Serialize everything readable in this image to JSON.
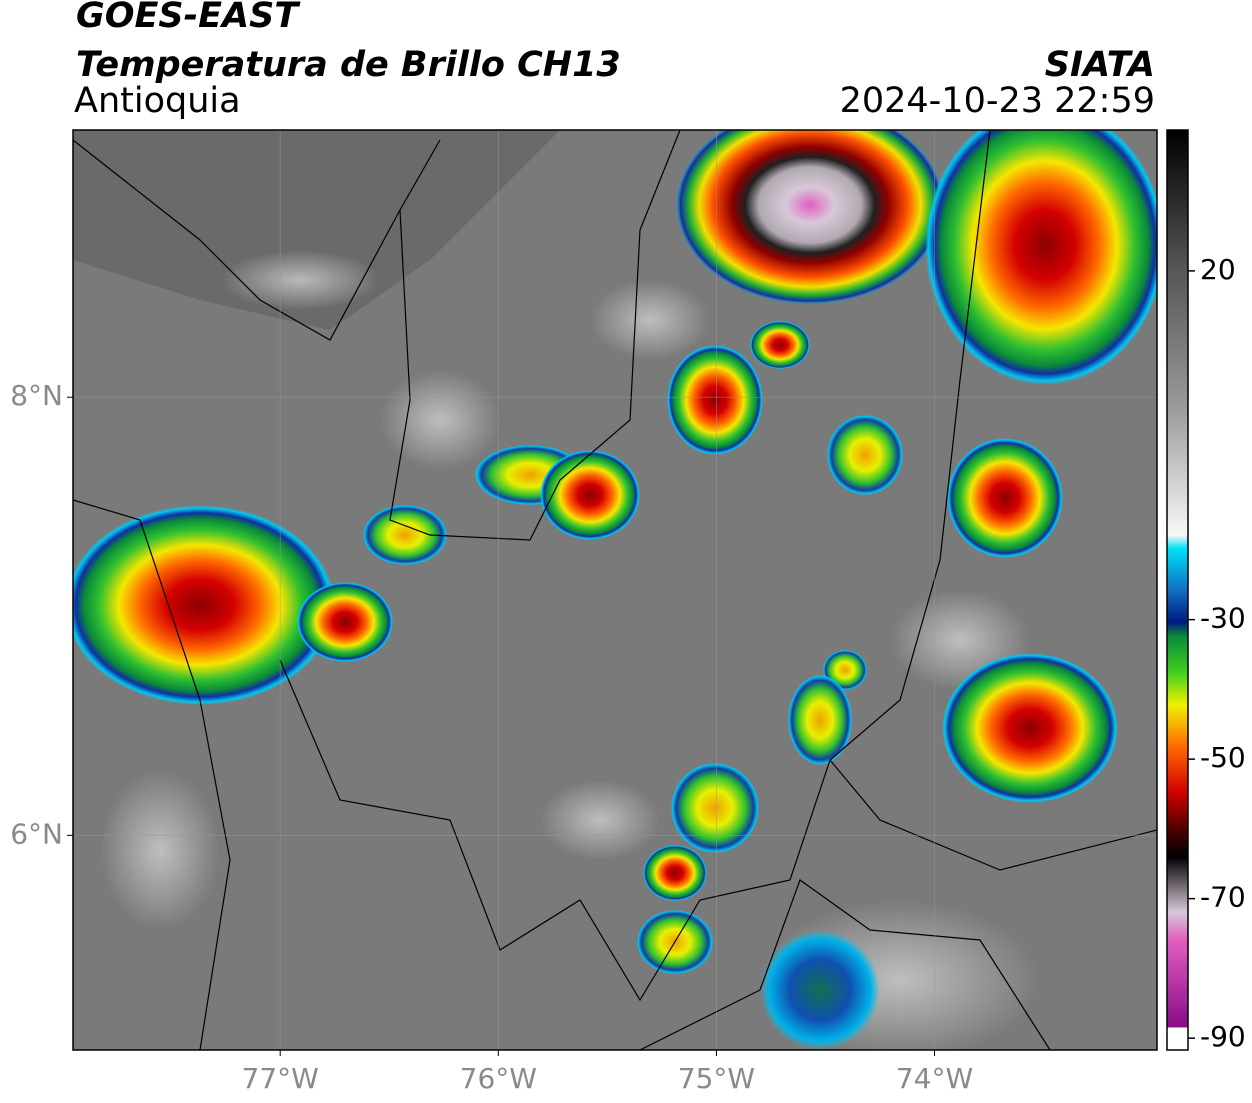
{
  "header": {
    "title": "GOES-EAST",
    "subtitle": "Temperatura de Brillo CH13",
    "region": "Antioquia",
    "source": "SIATA",
    "datetime": "2024-10-23 22:59"
  },
  "map": {
    "xlim": [
      -77.95,
      -72.98
    ],
    "ylim": [
      5.02,
      9.22
    ],
    "xticks": [
      {
        "value": -77,
        "label": "77°W"
      },
      {
        "value": -76,
        "label": "76°W"
      },
      {
        "value": -75,
        "label": "75°W"
      },
      {
        "value": -74,
        "label": "74°W"
      }
    ],
    "yticks": [
      {
        "value": 6,
        "label": "6°N"
      },
      {
        "value": 8,
        "label": "8°N"
      }
    ],
    "grid": true
  },
  "colorbar": {
    "lim": [
      -91.7,
      40.2
    ],
    "ticks": [
      20,
      -30,
      -50,
      -70,
      -90
    ]
  }
}
